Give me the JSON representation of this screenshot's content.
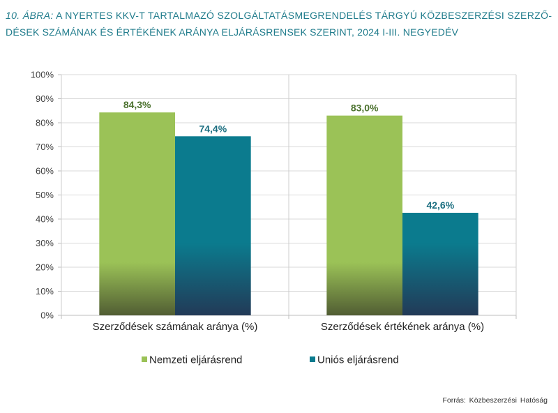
{
  "chart_data": {
    "type": "bar",
    "title": {
      "prefix": "10. ÁBRA:",
      "line1": "A NYERTES KKV-T TARTALMAZÓ SZOLGÁLTATÁSMEGRENDELÉS TÁRGYÚ KÖZBESZERZÉSI SZERZŐ-",
      "line2": "DÉSEK SZÁMÁNAK ÉS ÉRTÉKÉNEK ARÁNYA ELJÁRÁSRENSEK SZERINT, 2024 I-III. NEGYEDÉV"
    },
    "categories": [
      "Szerződések számának aránya (%)",
      "Szerződések értékének aránya (%)"
    ],
    "series": [
      {
        "name": "Nemzeti eljárásrend",
        "values": [
          84.3,
          83.0
        ],
        "labels": [
          "84,3%",
          "83,0%"
        ],
        "color": "#9bc257",
        "color_dark": "#515d33",
        "label_color": "#4d7330"
      },
      {
        "name": "Uniós eljárásrend",
        "values": [
          74.4,
          42.6
        ],
        "labels": [
          "74,4%",
          "42,6%"
        ],
        "color": "#0b7b8e",
        "color_dark": "#223a57",
        "label_color": "#1b6e80"
      }
    ],
    "ylim": [
      0,
      100
    ],
    "yticks": [
      0,
      10,
      20,
      30,
      40,
      50,
      60,
      70,
      80,
      90,
      100
    ],
    "ytick_labels": [
      "0%",
      "10%",
      "20%",
      "30%",
      "40%",
      "50%",
      "60%",
      "70%",
      "80%",
      "90%",
      "100%"
    ],
    "grid": true,
    "legend": "bottom"
  },
  "source": "Forrás: Közbeszerzési Hatóság",
  "colors": {
    "title": "#1f7b8b",
    "gridline": "#d9d9d9",
    "text": "#222222"
  }
}
